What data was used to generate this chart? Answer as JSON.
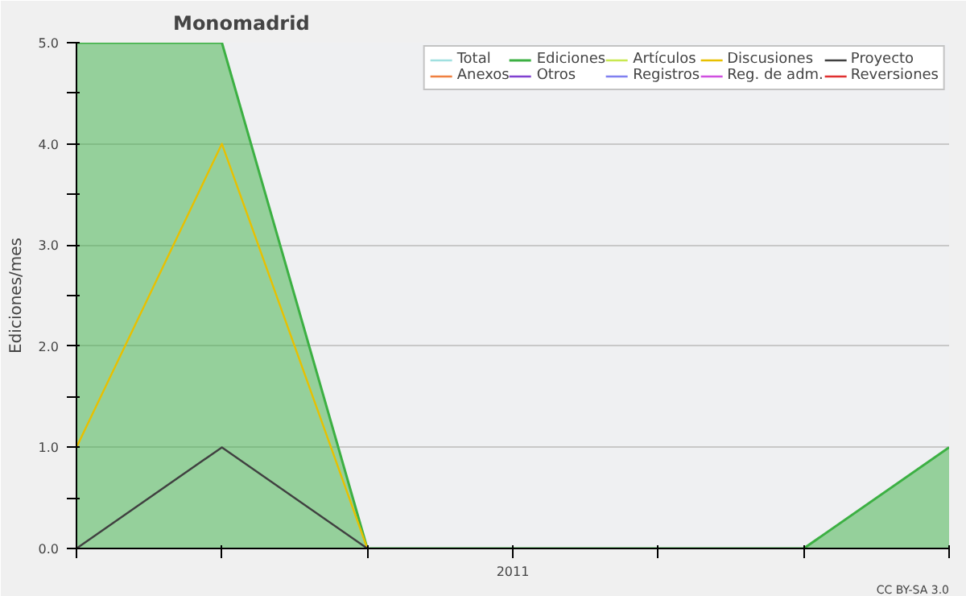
{
  "chart_data": {
    "type": "line",
    "title": "Monomadrid",
    "ylabel": "Ediciones/mes",
    "categories": [
      null,
      null,
      null,
      "2011",
      null,
      null,
      null
    ],
    "series": [
      {
        "name": "Total",
        "color": "#a0e0e0",
        "values": [
          null,
          null,
          null,
          null,
          null,
          null,
          null
        ]
      },
      {
        "name": "Anexos",
        "color": "#f08040",
        "values": [
          null,
          null,
          null,
          null,
          null,
          null,
          null
        ]
      },
      {
        "name": "Ediciones",
        "color": "#3cb043",
        "type": "area",
        "values": [
          5,
          5,
          0,
          0,
          0,
          0,
          1
        ]
      },
      {
        "name": "Otros",
        "color": "#8040d0",
        "values": [
          null,
          null,
          null,
          null,
          null,
          null,
          null
        ]
      },
      {
        "name": "Artículos",
        "color": "#c8e850",
        "values": [
          null,
          null,
          null,
          null,
          null,
          null,
          null
        ]
      },
      {
        "name": "Registros",
        "color": "#8080f0",
        "values": [
          null,
          null,
          null,
          null,
          null,
          null,
          null
        ]
      },
      {
        "name": "Discusiones",
        "color": "#e8c000",
        "values": [
          1,
          4,
          0,
          null,
          null,
          null,
          null
        ]
      },
      {
        "name": "Reg. de adm.",
        "color": "#d050e0",
        "values": [
          null,
          null,
          null,
          null,
          null,
          null,
          null
        ]
      },
      {
        "name": "Proyecto",
        "color": "#404040",
        "values": [
          0,
          1,
          0,
          null,
          null,
          null,
          null
        ]
      },
      {
        "name": "Reversiones",
        "color": "#e03030",
        "values": [
          null,
          null,
          null,
          null,
          null,
          null,
          null
        ]
      }
    ],
    "ylim": [
      0,
      5
    ],
    "yticks": [
      {
        "value": 0,
        "label": "0.0"
      },
      {
        "value": 0.5,
        "label": null
      },
      {
        "value": 1,
        "label": "1.0"
      },
      {
        "value": 1.5,
        "label": null
      },
      {
        "value": 2,
        "label": "2.0"
      },
      {
        "value": 2.5,
        "label": null
      },
      {
        "value": 3,
        "label": "3.0"
      },
      {
        "value": 3.5,
        "label": null
      },
      {
        "value": 4,
        "label": "4.0"
      },
      {
        "value": 4.5,
        "label": null
      },
      {
        "value": 5,
        "label": "5.0"
      }
    ],
    "grid": "y",
    "legend": "top right",
    "annotations": [
      "CC BY-SA 3.0"
    ]
  }
}
